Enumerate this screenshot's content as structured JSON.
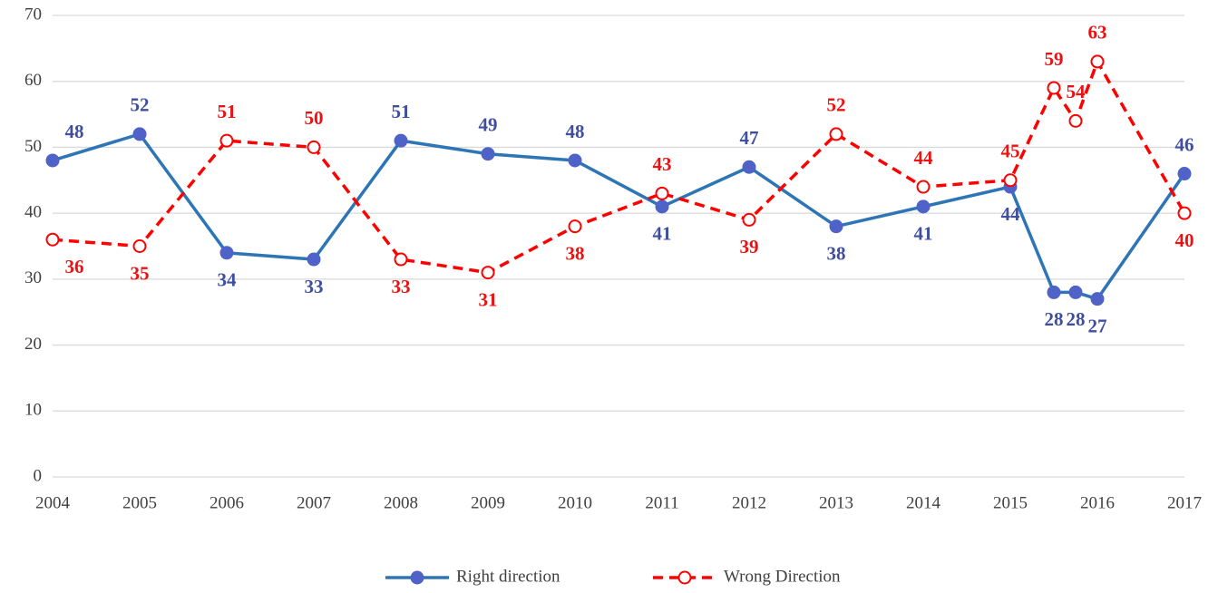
{
  "chart_data": {
    "type": "line",
    "x": [
      2004,
      2005,
      2006,
      2007,
      2008,
      2009,
      2010,
      2011,
      2012,
      2013,
      2014,
      2015,
      2015.5,
      2015.75,
      2016,
      2017
    ],
    "series": [
      {
        "name": "Right direction",
        "color": "#2e75b6",
        "marker_color": "#4f62c8",
        "label_color": "#3f4fa0",
        "dashed": false,
        "marker_fill": true,
        "values": [
          48,
          52,
          34,
          33,
          51,
          49,
          48,
          41,
          47,
          38,
          41,
          44,
          28,
          28,
          27,
          46
        ]
      },
      {
        "name": "Wrong Direction",
        "color": "#ff0000",
        "marker_color": "#ff0000",
        "label_color": "#ee1111",
        "dashed": true,
        "marker_fill": false,
        "values": [
          36,
          35,
          51,
          50,
          33,
          31,
          38,
          43,
          39,
          52,
          44,
          45,
          59,
          54,
          63,
          40
        ]
      }
    ],
    "xlim": [
      2004,
      2017
    ],
    "xticks": [
      2004,
      2005,
      2006,
      2007,
      2008,
      2009,
      2010,
      2011,
      2012,
      2013,
      2014,
      2015,
      2016,
      2017
    ],
    "ylim": [
      0,
      70
    ],
    "yticks": [
      0,
      10,
      20,
      30,
      40,
      50,
      60,
      70
    ],
    "grid": true,
    "legend": "bottom"
  }
}
